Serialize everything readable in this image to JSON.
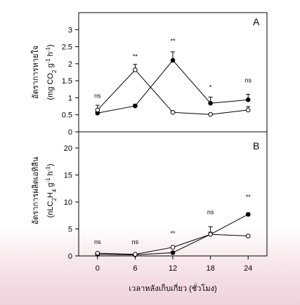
{
  "chart_data": [
    {
      "type": "line",
      "panel_label": "A",
      "ylabel": "อัตราการหายใจ",
      "ylabel_unit_parts": [
        "(mg CO",
        "2",
        " g",
        "-1",
        " h",
        "-1",
        ")"
      ],
      "x": [
        0,
        6,
        12,
        18,
        24
      ],
      "xlim": [
        -3,
        27
      ],
      "ylim": [
        0,
        3.5
      ],
      "yticks": [
        0,
        0.5,
        1,
        1.5,
        2,
        2.5,
        3
      ],
      "ytick_labels": [
        "0",
        "0.5",
        "1",
        "1.5",
        "2",
        "2.5",
        "3"
      ],
      "series": [
        {
          "marker": "filled",
          "values": [
            0.55,
            0.76,
            2.1,
            0.84,
            0.94
          ],
          "errors": [
            0.04,
            0.05,
            0.25,
            0.18,
            0.16
          ]
        },
        {
          "marker": "open",
          "values": [
            0.64,
            1.82,
            0.57,
            0.51,
            0.64
          ],
          "errors": [
            0.14,
            0.16,
            0.04,
            0.03,
            0.1
          ]
        }
      ],
      "annotations": [
        {
          "x": 0,
          "y": 1.0,
          "text": "ns"
        },
        {
          "x": 6,
          "y": 2.15,
          "text": "**"
        },
        {
          "x": 12,
          "y": 2.6,
          "text": "**"
        },
        {
          "x": 18,
          "y": 1.25,
          "text": "*"
        },
        {
          "x": 24,
          "y": 1.45,
          "text": "ns"
        }
      ]
    },
    {
      "type": "line",
      "panel_label": "B",
      "ylabel": "อัตราการผลิตเอทิลีน",
      "ylabel_unit_parts": [
        "(nLC",
        "2",
        "H",
        "4",
        " g",
        "-1",
        " h",
        "-1",
        ")"
      ],
      "x": [
        0,
        6,
        12,
        18,
        24
      ],
      "xlim": [
        -3,
        27
      ],
      "ylim": [
        0,
        23
      ],
      "yticks": [
        0,
        5,
        10,
        15,
        20
      ],
      "ytick_labels": [
        "0",
        "5",
        "10",
        "15",
        "20"
      ],
      "xticks": [
        0,
        6,
        12,
        18,
        24
      ],
      "xtick_labels": [
        "0",
        "6",
        "12",
        "18",
        "24"
      ],
      "xlabel": "เวลาหลังเก็บเกี่ยว (ชั่วโมง)",
      "series": [
        {
          "marker": "filled",
          "values": [
            0.3,
            0.2,
            0.6,
            4.0,
            7.7
          ],
          "errors": [
            0.05,
            0.05,
            0.1,
            0.4,
            0.2
          ]
        },
        {
          "marker": "open",
          "values": [
            0.5,
            0.3,
            1.6,
            4.0,
            3.7
          ],
          "errors": [
            0.1,
            0.05,
            0.2,
            1.4,
            0.2
          ]
        }
      ],
      "annotations": [
        {
          "x": 0,
          "y": 2.2,
          "text": "ns"
        },
        {
          "x": 6,
          "y": 2.2,
          "text": "ns"
        },
        {
          "x": 12,
          "y": 3.8,
          "text": "**"
        },
        {
          "x": 18,
          "y": 7.7,
          "text": "ns"
        },
        {
          "x": 24,
          "y": 10.5,
          "text": "**"
        }
      ]
    }
  ]
}
